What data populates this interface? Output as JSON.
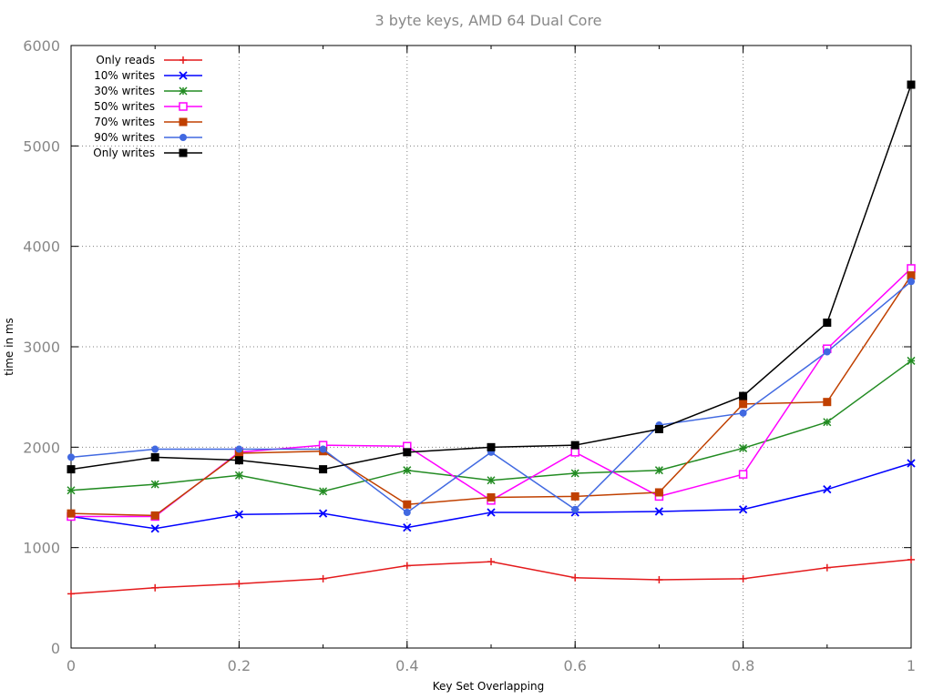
{
  "chart_data": {
    "type": "line",
    "title": "3 byte keys, AMD 64 Dual Core",
    "xlabel": "Key Set Overlapping",
    "ylabel": "time in ms",
    "xlim": [
      0,
      1
    ],
    "ylim": [
      0,
      6000
    ],
    "x_ticks": [
      "0",
      "0.2",
      "0.4",
      "0.6",
      "0.8",
      "1"
    ],
    "y_ticks": [
      "0",
      "1000",
      "2000",
      "3000",
      "4000",
      "5000",
      "6000"
    ],
    "grid": true,
    "legend_position": "top-left",
    "x": [
      0,
      0.1,
      0.2,
      0.3,
      0.4,
      0.5,
      0.6,
      0.7,
      0.8,
      0.9,
      1.0
    ],
    "series": [
      {
        "name": "Only reads",
        "color": "#e41a1c",
        "marker": "plus",
        "values": [
          540,
          600,
          640,
          690,
          820,
          860,
          700,
          680,
          690,
          800,
          880
        ]
      },
      {
        "name": "10% writes",
        "color": "#0000ff",
        "marker": "cross",
        "values": [
          1310,
          1190,
          1330,
          1340,
          1200,
          1350,
          1350,
          1360,
          1380,
          1580,
          1840
        ]
      },
      {
        "name": "30% writes",
        "color": "#228b22",
        "marker": "star",
        "values": [
          1570,
          1630,
          1720,
          1560,
          1770,
          1670,
          1740,
          1770,
          1990,
          2250,
          2860
        ]
      },
      {
        "name": "50% writes",
        "color": "#ff00ff",
        "marker": "open-square",
        "values": [
          1310,
          1310,
          1950,
          2020,
          2010,
          1470,
          1950,
          1510,
          1730,
          2980,
          3780
        ]
      },
      {
        "name": "70% writes",
        "color": "#c04000",
        "marker": "filled-square",
        "values": [
          1340,
          1320,
          1940,
          1960,
          1430,
          1500,
          1510,
          1550,
          2430,
          2450,
          3710
        ]
      },
      {
        "name": "90% writes",
        "color": "#4169e1",
        "marker": "filled-circle",
        "values": [
          1900,
          1980,
          1980,
          1980,
          1350,
          1950,
          1380,
          2220,
          2340,
          2950,
          3650
        ]
      },
      {
        "name": "Only writes",
        "color": "#000000",
        "marker": "filled-square",
        "values": [
          1780,
          1900,
          1870,
          1780,
          1950,
          2000,
          2020,
          2180,
          2510,
          3240,
          5610
        ]
      }
    ]
  }
}
